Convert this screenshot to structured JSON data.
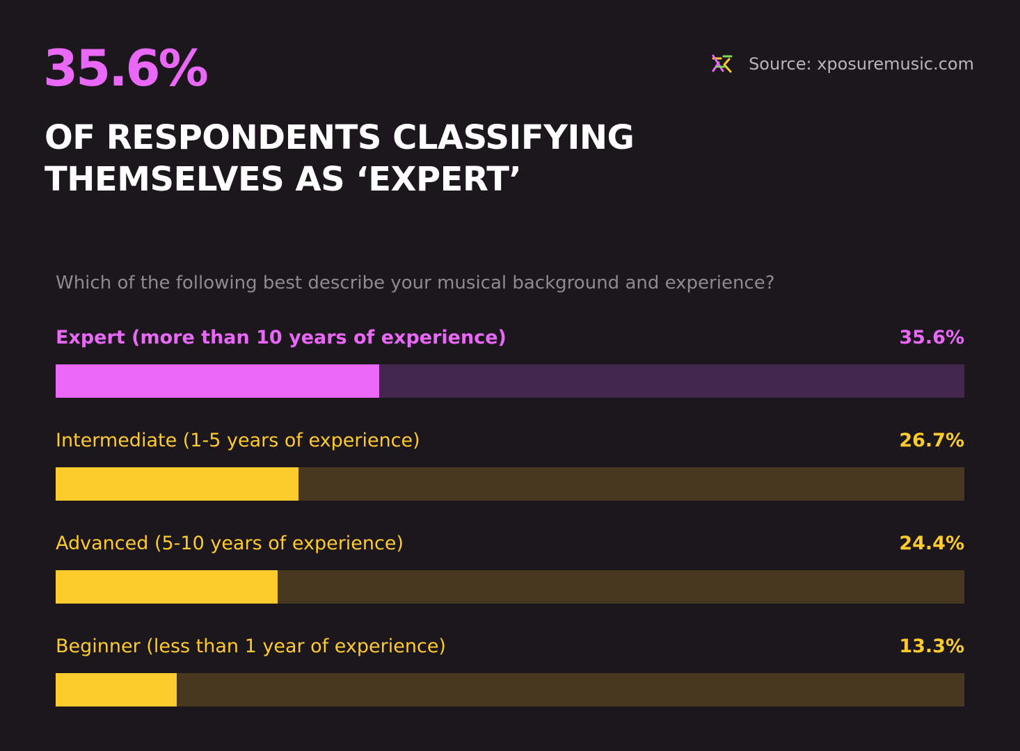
{
  "header": {
    "stat": "35.6%",
    "subtitle_lines": [
      "OF RESPONDENTS CLASSIFYING",
      "THEMSELVES AS ‘EXPERT’"
    ],
    "source": "Source: xposuremusic.com",
    "logo_icon": "xposure-logo-icon"
  },
  "colors": {
    "background": "#1b171d",
    "highlight_fill": "#ea68f7",
    "highlight_track": "#43274f",
    "default_fill": "#fecb2e",
    "default_track": "#473920",
    "default_label": "#fecb2e"
  },
  "chart_data": {
    "type": "bar",
    "orientation": "horizontal",
    "title": "Which of the following best describe your musical background and experience?",
    "xlim": [
      0,
      100
    ],
    "unit": "%",
    "grid": false,
    "categories": [
      "Expert (more than 10 years of experience)",
      "Intermediate (1-5 years of experience)",
      "Advanced (5-10 years of experience)",
      "Beginner (less than 1 year of experience)"
    ],
    "values": [
      35.6,
      26.7,
      24.4,
      13.3
    ],
    "value_labels": [
      "35.6%",
      "26.7%",
      "24.4%",
      "13.3%"
    ],
    "highlighted": [
      true,
      false,
      false,
      false
    ]
  }
}
